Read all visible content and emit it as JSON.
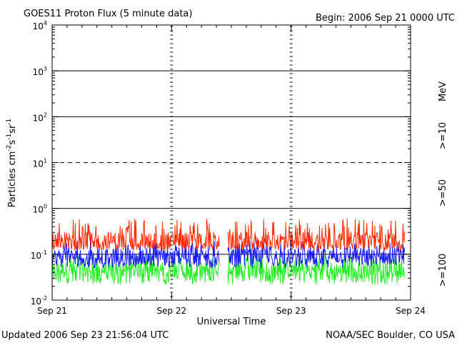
{
  "header": {
    "title": "GOES11 Proton Flux (5 minute data)",
    "begin": "Begin: 2006 Sep 21 0000 UTC"
  },
  "footer": {
    "updated": "Updated 2006 Sep 23 21:56:04 UTC",
    "credit": "NOAA/SEC Boulder, CO USA"
  },
  "chart_data": {
    "type": "line",
    "title": "GOES11 Proton Flux (5 minute data)",
    "xlabel": "Universal Time",
    "ylabel": "Particles cm-2s-1sr-1",
    "yscale": "log",
    "ylim": [
      0.01,
      10000
    ],
    "xlim": [
      0,
      3
    ],
    "x_tick_labels": [
      "Sep 21",
      "Sep 22",
      "Sep 23",
      "Sep 24"
    ],
    "y_tick_labels": [
      {
        "base": "10",
        "exp": "-2",
        "value": 0.01
      },
      {
        "base": "10",
        "exp": "-1",
        "value": 0.1
      },
      {
        "base": "10",
        "exp": "0",
        "value": 1
      },
      {
        "base": "10",
        "exp": "1",
        "value": 10
      },
      {
        "base": "10",
        "exp": "2",
        "value": 100
      },
      {
        "base": "10",
        "exp": "3",
        "value": 1000
      },
      {
        "base": "10",
        "exp": "4",
        "value": 10000
      }
    ],
    "right_axis_label": "MeV",
    "reference_lines": [
      {
        "y": 1000,
        "style": "solid"
      },
      {
        "y": 100,
        "style": "solid"
      },
      {
        "y": 10,
        "style": "dashed"
      },
      {
        "y": 1,
        "style": "solid"
      },
      {
        "y": 0.1,
        "style": "solid"
      }
    ],
    "data_gap": [
      1.4,
      1.47
    ],
    "series": [
      {
        "name": ">=10",
        "color": "#ff2a00",
        "base": 0.2,
        "low": 0.12,
        "high": 0.6
      },
      {
        "name": ">=50",
        "color": "#1a1aff",
        "base": 0.09,
        "low": 0.05,
        "high": 0.2
      },
      {
        "name": ">=100",
        "color": "#22ee22",
        "base": 0.045,
        "low": 0.022,
        "high": 0.1
      }
    ]
  }
}
